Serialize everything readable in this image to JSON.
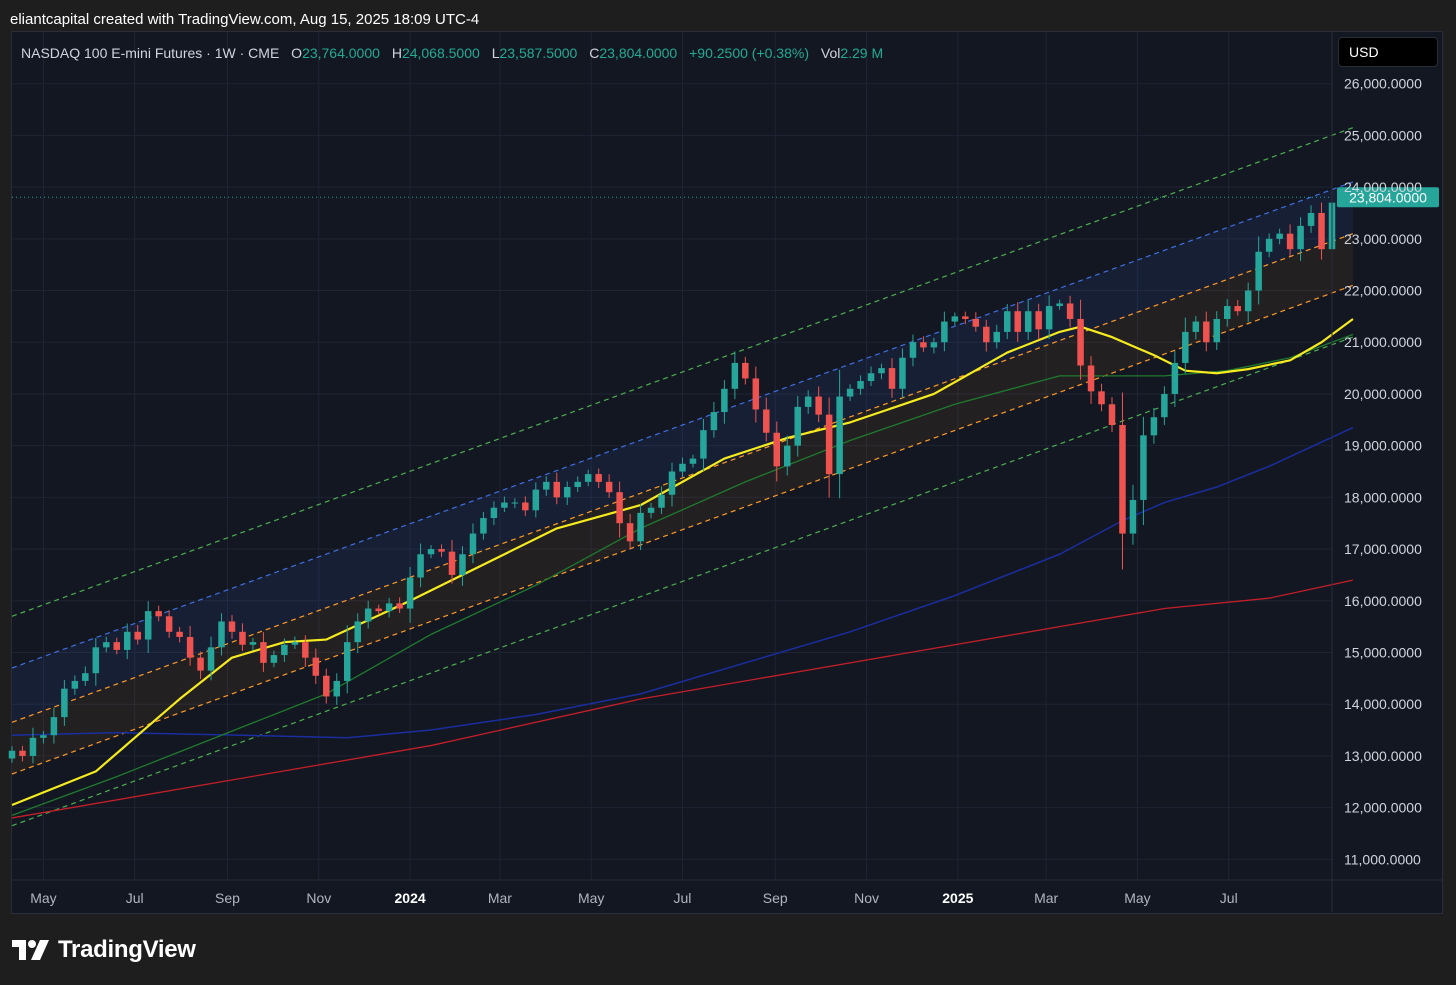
{
  "caption": "eliantcapital created with TradingView.com, Aug 15, 2025 18:09 UTC-4",
  "legend": {
    "symbol": "NASDAQ 100 E-mini Futures · 1W · CME",
    "o_label": "O",
    "o_value": "23,764.0000",
    "h_label": "H",
    "h_value": "24,068.5000",
    "l_label": "L",
    "l_value": "23,587.5000",
    "c_label": "C",
    "c_value": "23,804.0000",
    "change": "+90.2500 (+0.38%)",
    "vol_label": "Vol",
    "vol_value": "2.29 M"
  },
  "currency": "USD",
  "last_price_label": "23,804.0000",
  "brand": "TradingView",
  "colors": {
    "up": "#26a69a",
    "down": "#ef5350",
    "background": "#131722",
    "grid": "#1f2433",
    "ma_yellow": "#f5eb1e",
    "ma_green": "#1f7a2e",
    "ma_blue": "#1a2ea0",
    "ma_red": "#c41f28",
    "channel_top": "#4caf50",
    "channel_upper": "#3f6fe0",
    "channel_mid": "#ff9a28",
    "channel_bottom": "#4caf50"
  },
  "chart_data": {
    "type": "candlestick",
    "interval": "1W",
    "y_axis": {
      "ticks": [
        26000,
        25000,
        24000,
        23000,
        22000,
        21000,
        20000,
        19000,
        18000,
        17000,
        16000,
        15000,
        14000,
        13000,
        12000,
        11000
      ],
      "tick_labels": [
        "26,000.0000",
        "25,000.0000",
        "24,000.0000",
        "23,000.0000",
        "22,000.0000",
        "21,000.0000",
        "20,000.0000",
        "19,000.0000",
        "18,000.0000",
        "17,000.0000",
        "16,000.0000",
        "15,000.0000",
        "14,000.0000",
        "13,000.0000",
        "12,000.0000",
        "11,000.0000"
      ],
      "range": [
        10600,
        27000
      ]
    },
    "x_axis": {
      "range": [
        "2023-04-10",
        "2025-09-08"
      ],
      "ticks": [
        {
          "date": "2023-05-01",
          "label": "May",
          "bold": false
        },
        {
          "date": "2023-07-01",
          "label": "Jul",
          "bold": false
        },
        {
          "date": "2023-09-01",
          "label": "Sep",
          "bold": false
        },
        {
          "date": "2023-11-01",
          "label": "Nov",
          "bold": false
        },
        {
          "date": "2024-01-01",
          "label": "2024",
          "bold": true
        },
        {
          "date": "2024-03-01",
          "label": "Mar",
          "bold": false
        },
        {
          "date": "2024-05-01",
          "label": "May",
          "bold": false
        },
        {
          "date": "2024-07-01",
          "label": "Jul",
          "bold": false
        },
        {
          "date": "2024-09-01",
          "label": "Sep",
          "bold": false
        },
        {
          "date": "2024-11-01",
          "label": "Nov",
          "bold": false
        },
        {
          "date": "2025-01-01",
          "label": "2025",
          "bold": true
        },
        {
          "date": "2025-03-01",
          "label": "Mar",
          "bold": false
        },
        {
          "date": "2025-05-01",
          "label": "May",
          "bold": false
        },
        {
          "date": "2025-07-01",
          "label": "Jul",
          "bold": false
        }
      ]
    },
    "first_week": "2023-04-10",
    "last_price": 23804,
    "closes": [
      13100,
      13000,
      13350,
      13400,
      13750,
      14300,
      14450,
      14600,
      15100,
      15200,
      15050,
      15400,
      15250,
      15800,
      15700,
      15400,
      15300,
      14900,
      14650,
      15100,
      15600,
      15400,
      15150,
      15200,
      14800,
      14950,
      15150,
      15200,
      14900,
      14550,
      14150,
      14450,
      15200,
      15600,
      15850,
      15800,
      15950,
      15850,
      16450,
      16900,
      17000,
      16950,
      16500,
      16900,
      17300,
      17600,
      17800,
      17900,
      17900,
      17750,
      18150,
      18300,
      18000,
      18200,
      18300,
      18450,
      18300,
      18100,
      17500,
      17150,
      17700,
      17800,
      18050,
      18500,
      18650,
      18750,
      19300,
      19650,
      20100,
      20600,
      20300,
      19700,
      19250,
      18600,
      19000,
      19750,
      19950,
      19600,
      18450,
      19950,
      20100,
      20250,
      20400,
      20500,
      20100,
      20700,
      21000,
      20900,
      21000,
      21400,
      21500,
      21450,
      21300,
      21000,
      21200,
      21600,
      21200,
      21600,
      21250,
      21700,
      21750,
      21450,
      20550,
      20050,
      19800,
      19400,
      17300,
      17950,
      19200,
      19550,
      20000,
      20600,
      21200,
      21400,
      21000,
      21450,
      21700,
      21600,
      22000,
      22750,
      23000,
      23100,
      22800,
      23250,
      23500,
      22800,
      23700,
      23804
    ],
    "ma_yellow": [
      [
        0,
        12050
      ],
      [
        8,
        12700
      ],
      [
        16,
        14100
      ],
      [
        21,
        14900
      ],
      [
        26,
        15200
      ],
      [
        30,
        15250
      ],
      [
        38,
        16000
      ],
      [
        44,
        16600
      ],
      [
        52,
        17400
      ],
      [
        60,
        17850
      ],
      [
        68,
        18750
      ],
      [
        74,
        19150
      ],
      [
        80,
        19450
      ],
      [
        88,
        20000
      ],
      [
        95,
        20800
      ],
      [
        100,
        21200
      ],
      [
        102,
        21300
      ],
      [
        105,
        21100
      ],
      [
        109,
        20750
      ],
      [
        112,
        20450
      ],
      [
        115,
        20400
      ],
      [
        118,
        20480
      ],
      [
        122,
        20650
      ],
      [
        125,
        21000
      ],
      [
        128,
        21450
      ]
    ],
    "ma_green": [
      [
        0,
        11850
      ],
      [
        10,
        12600
      ],
      [
        20,
        13400
      ],
      [
        30,
        14200
      ],
      [
        40,
        15350
      ],
      [
        50,
        16300
      ],
      [
        60,
        17400
      ],
      [
        70,
        18300
      ],
      [
        80,
        19100
      ],
      [
        90,
        19800
      ],
      [
        100,
        20350
      ],
      [
        104,
        20350
      ],
      [
        110,
        20350
      ],
      [
        116,
        20450
      ],
      [
        122,
        20700
      ],
      [
        128,
        21150
      ]
    ],
    "ma_blue": [
      [
        0,
        13400
      ],
      [
        10,
        13450
      ],
      [
        22,
        13400
      ],
      [
        32,
        13350
      ],
      [
        40,
        13500
      ],
      [
        50,
        13800
      ],
      [
        60,
        14200
      ],
      [
        70,
        14800
      ],
      [
        80,
        15400
      ],
      [
        90,
        16100
      ],
      [
        100,
        16900
      ],
      [
        106,
        17550
      ],
      [
        110,
        17900
      ],
      [
        115,
        18200
      ],
      [
        120,
        18600
      ],
      [
        128,
        19350
      ]
    ],
    "ma_red": [
      [
        0,
        11800
      ],
      [
        20,
        12500
      ],
      [
        40,
        13200
      ],
      [
        60,
        14100
      ],
      [
        80,
        14800
      ],
      [
        100,
        15500
      ],
      [
        110,
        15850
      ],
      [
        120,
        16050
      ],
      [
        128,
        16400
      ]
    ],
    "channels": {
      "top": [
        [
          0,
          15700
        ],
        [
          128,
          25150
        ]
      ],
      "upper": [
        [
          0,
          14700
        ],
        [
          128,
          24100
        ]
      ],
      "mid": [
        [
          0,
          13650
        ],
        [
          128,
          23100
        ]
      ],
      "lower": [
        [
          0,
          12650
        ],
        [
          128,
          22100
        ]
      ],
      "bottom": [
        [
          0,
          11650
        ],
        [
          128,
          21100
        ]
      ]
    }
  }
}
